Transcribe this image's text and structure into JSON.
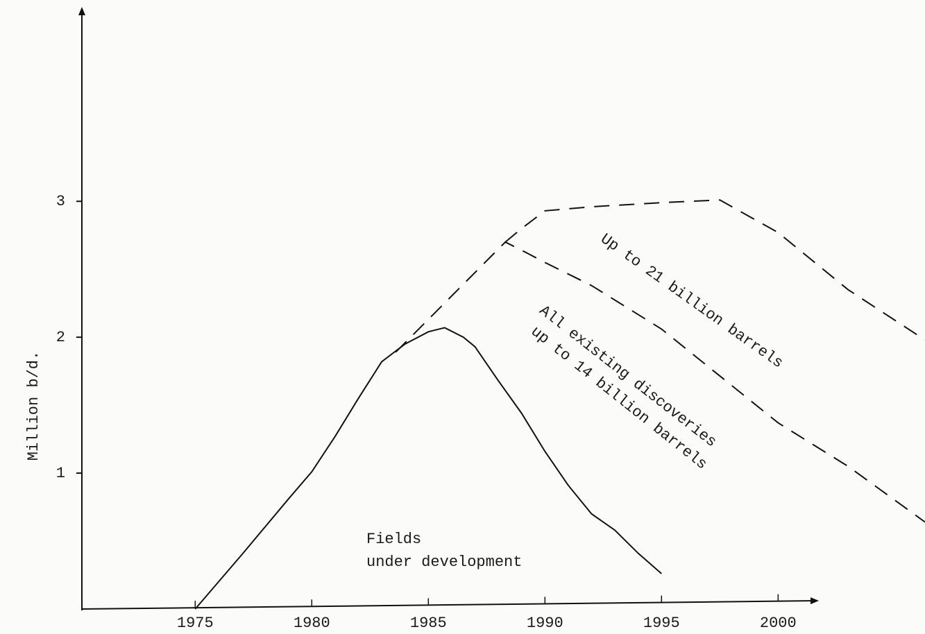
{
  "chart_data": {
    "type": "line",
    "ylabel": "Million b/d.",
    "xlim": [
      1970.2,
      2006.3
    ],
    "ylim": [
      0,
      4.42
    ],
    "xticks": [
      1975,
      1980,
      1985,
      1990,
      1995,
      2000
    ],
    "yticks": [
      1,
      2,
      3
    ],
    "series": [
      {
        "name": "Fields under development",
        "color": "#111111",
        "style": "solid",
        "x": [
          1975,
          1977,
          1979,
          1980,
          1981,
          1982,
          1983,
          1984,
          1985,
          1985.7,
          1986.5,
          1987,
          1988,
          1989,
          1990,
          1991,
          1992,
          1993,
          1994,
          1995
        ],
        "values": [
          0,
          0.4,
          0.81,
          1.01,
          1.27,
          1.55,
          1.82,
          1.95,
          2.04,
          2.07,
          2.0,
          1.93,
          1.68,
          1.44,
          1.16,
          0.91,
          0.7,
          0.58,
          0.41,
          0.26
        ]
      },
      {
        "name": "All existing discoveries up to 14 billion barrels",
        "color": "#111111",
        "style": "dashed",
        "x": [
          1983.6,
          1988.3,
          1989,
          1990,
          1992,
          1995,
          2000,
          2003,
          2006.3
        ],
        "values": [
          1.89,
          2.7,
          2.64,
          2.55,
          2.38,
          2.06,
          1.37,
          1.05,
          0.64
        ]
      },
      {
        "name": "Up to 21 billion barrels",
        "color": "#111111",
        "style": "dashed",
        "x": [
          1988.3,
          1989,
          1990,
          1992,
          1995,
          1997.5,
          2000,
          2003,
          2006.3
        ],
        "values": [
          2.7,
          2.8,
          2.93,
          2.96,
          2.99,
          3.01,
          2.77,
          2.35,
          1.98
        ]
      }
    ],
    "annotations": [
      "Fields",
      "under development",
      "All existing discoveries",
      "up to 14 billion barrels",
      "Up to 21 billion barrels"
    ]
  }
}
